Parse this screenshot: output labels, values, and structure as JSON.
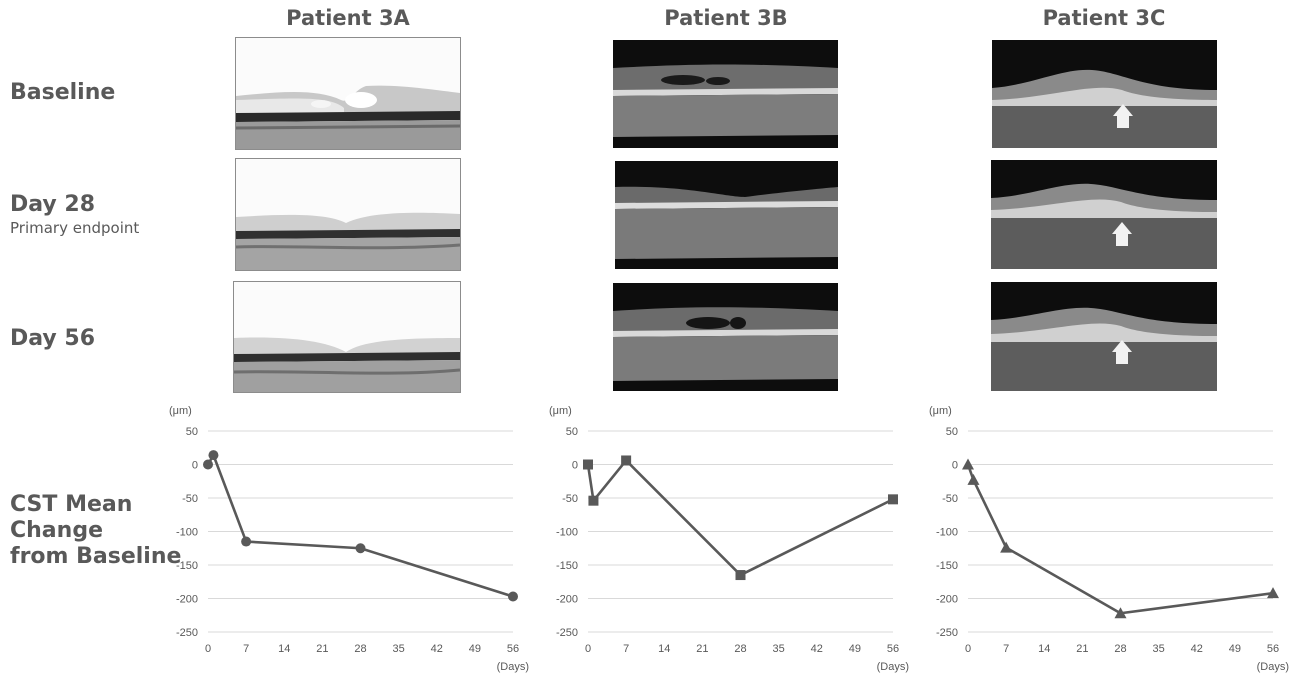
{
  "columns": [
    "Patient 3A",
    "Patient 3B",
    "Patient 3C"
  ],
  "rows": {
    "baseline": "Baseline",
    "day28": "Day 28",
    "day28_sub": "Primary endpoint",
    "day56": "Day 56",
    "cst_line1": "CST Mean",
    "cst_line2": "Change",
    "cst_line3": "from Baseline"
  },
  "colors": {
    "line": "#595959",
    "grid": "#d9d9d9",
    "text": "#595959"
  },
  "chart_data": [
    {
      "type": "line",
      "marker": "circle",
      "yunit": "(μm)",
      "xunit": "(Days)",
      "x": [
        0,
        1,
        7,
        28,
        56
      ],
      "y": [
        0,
        14,
        -115,
        -125,
        -197
      ],
      "xticks": [
        0,
        7,
        14,
        21,
        28,
        35,
        42,
        49,
        56
      ],
      "yticks": [
        50,
        0,
        -50,
        -100,
        -150,
        -200,
        -250
      ],
      "xlim": [
        0,
        56
      ],
      "ylim": [
        -250,
        50
      ],
      "grid": true
    },
    {
      "type": "line",
      "marker": "square",
      "yunit": "(μm)",
      "xunit": "(Days)",
      "x": [
        0,
        1,
        7,
        28,
        56
      ],
      "y": [
        0,
        -54,
        6,
        -165,
        -52
      ],
      "xticks": [
        0,
        7,
        14,
        21,
        28,
        35,
        42,
        49,
        56
      ],
      "yticks": [
        50,
        0,
        -50,
        -100,
        -150,
        -200,
        -250
      ],
      "xlim": [
        0,
        56
      ],
      "ylim": [
        -250,
        50
      ],
      "grid": true
    },
    {
      "type": "line",
      "marker": "triangle",
      "yunit": "(μm)",
      "xunit": "(Days)",
      "x": [
        0,
        1,
        7,
        28,
        56
      ],
      "y": [
        0,
        -23,
        -124,
        -222,
        -192
      ],
      "xticks": [
        0,
        7,
        14,
        21,
        28,
        35,
        42,
        49,
        56
      ],
      "yticks": [
        50,
        0,
        -50,
        -100,
        -150,
        -200,
        -250
      ],
      "xlim": [
        0,
        56
      ],
      "ylim": [
        -250,
        50
      ],
      "grid": true
    }
  ]
}
